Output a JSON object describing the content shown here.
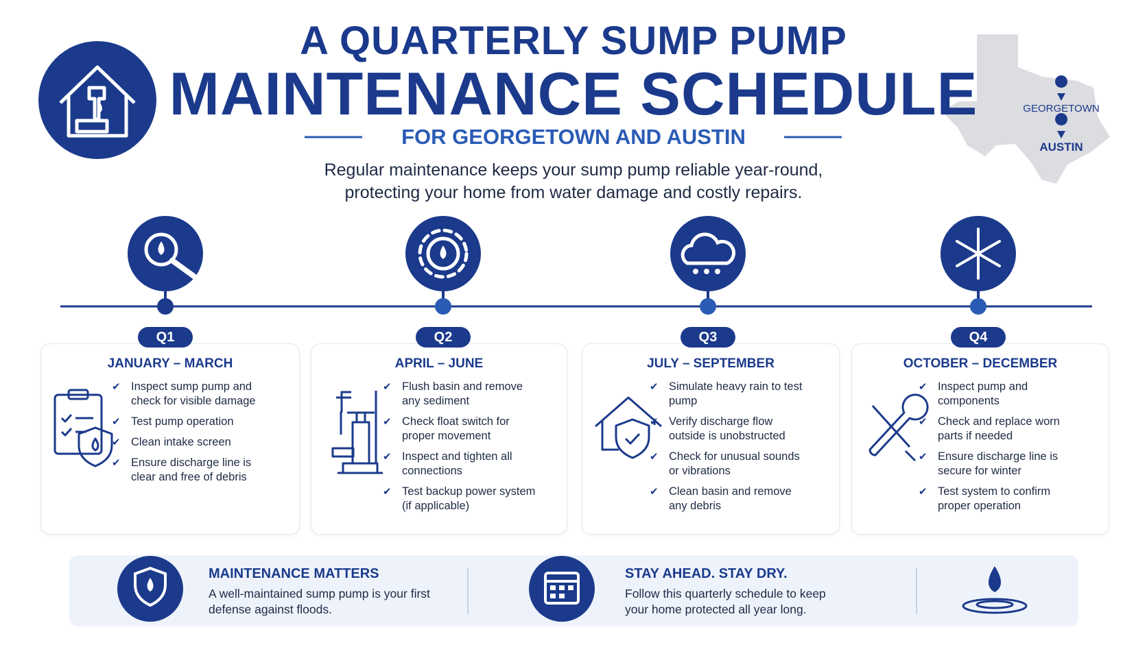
{
  "header": {
    "title_line1": "A QUARTERLY SUMP PUMP",
    "title_line2": "MAINTENANCE SCHEDULE",
    "subtitle": "FOR GEORGETOWN AND AUSTIN",
    "intro_line1": "Regular maintenance keeps your sump pump reliable year-round,",
    "intro_line2": "protecting your home from water damage and costly repairs.",
    "map_labels": [
      "GEORGETOWN",
      "AUSTIN"
    ]
  },
  "quarters": [
    {
      "label": "Q1",
      "months": "JANUARY – MARCH",
      "tasks": [
        "Inspect sump pump and check for visible damage",
        "Test pump operation",
        "Clean intake screen",
        "Ensure discharge line is clear and free of debris"
      ]
    },
    {
      "label": "Q2",
      "months": "APRIL – JUNE",
      "tasks": [
        "Flush basin and remove any sediment",
        "Check float switch for proper movement",
        "Inspect and tighten all connections",
        "Test backup power system (if applicable)"
      ]
    },
    {
      "label": "Q3",
      "months": "JULY – SEPTEMBER",
      "tasks": [
        "Simulate heavy rain to test pump",
        "Verify discharge flow outside is unobstructed",
        "Check for unusual sounds or vibrations",
        "Clean basin and remove any debris"
      ]
    },
    {
      "label": "Q4",
      "months": "OCTOBER – DECEMBER",
      "tasks": [
        "Inspect pump and components",
        "Check and replace worn parts if needed",
        "Ensure discharge line is secure for winter",
        "Test system to confirm proper operation"
      ]
    }
  ],
  "footer": [
    {
      "title": "MAINTENANCE MATTERS",
      "text": "A well-maintained sump pump is your first defense against floods."
    },
    {
      "title": "STAY AHEAD. STAY DRY.",
      "text": "Follow this quarterly schedule to keep your home protected all year long."
    }
  ]
}
